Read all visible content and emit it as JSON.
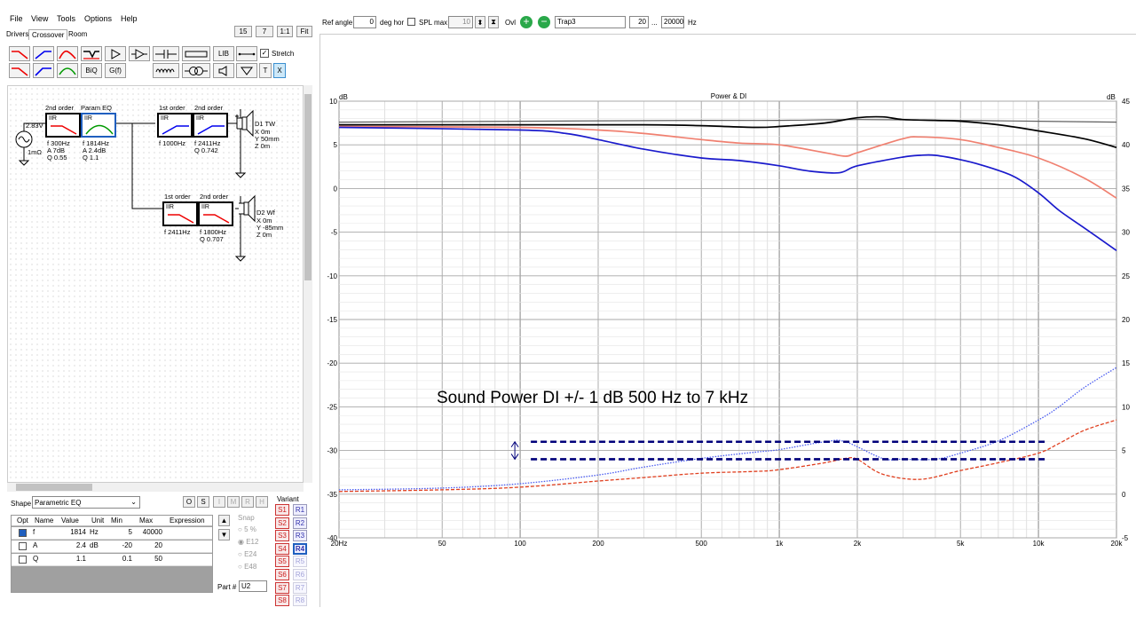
{
  "menu": [
    "File",
    "View",
    "Tools",
    "Options",
    "Help"
  ],
  "tabs": [
    "Drivers",
    "Crossover",
    "Room"
  ],
  "active_tab": "Crossover",
  "zoom_buttons": [
    "15",
    "7",
    "1:1",
    "Fit"
  ],
  "toolbar": {
    "lib_label": "LIB",
    "stretch_label": "Stretch",
    "biq_label": "BiQ",
    "gf_label": "G(f)",
    "t_label": "T",
    "x_label": "X"
  },
  "schematic": {
    "source_voltage": "2.83V",
    "source_impedance": "1mΩ",
    "blocks": [
      {
        "id": "lp1",
        "title": "2nd order",
        "type": "IIR",
        "params": [
          "f  300Hz",
          "A  7dB",
          "Q  0.55"
        ]
      },
      {
        "id": "peq",
        "title": "Param EQ",
        "type": "IIR",
        "params": [
          "f  1814Hz",
          "A  2.4dB",
          "Q  1.1"
        ]
      },
      {
        "id": "hp1",
        "title": "1st order",
        "type": "IIR",
        "params": [
          "f  1000Hz"
        ]
      },
      {
        "id": "hp2",
        "title": "2nd order",
        "type": "IIR",
        "params": [
          "f  2411Hz",
          "Q  0.742"
        ]
      },
      {
        "id": "lp2",
        "title": "1st order",
        "type": "IIR",
        "params": [
          "f  2411Hz"
        ]
      },
      {
        "id": "lp3",
        "title": "2nd order",
        "type": "IIR",
        "params": [
          "f  1800Hz",
          "Q  0.707"
        ]
      }
    ],
    "drivers": [
      {
        "name": "D1 TW",
        "lines": [
          "X 0m",
          "Y 50mm",
          "Z 0m"
        ]
      },
      {
        "name": "D2 Wf",
        "lines": [
          "X 0m",
          "Y -85mm",
          "Z 0m"
        ]
      }
    ]
  },
  "shape": {
    "label": "Shape",
    "value": "Parametric EQ",
    "buttons": [
      "O",
      "S",
      "I",
      "M",
      "R",
      "H"
    ]
  },
  "param_table": {
    "headers": [
      "Opt",
      "Name",
      "Value",
      "Unit",
      "Min",
      "Max",
      "Expression"
    ],
    "rows": [
      {
        "name": "f",
        "value": "1814",
        "unit": "Hz",
        "min": "5",
        "max": "40000",
        "expr": ""
      },
      {
        "name": "A",
        "value": "2.4",
        "unit": "dB",
        "min": "-20",
        "max": "20",
        "expr": ""
      },
      {
        "name": "Q",
        "value": "1.1",
        "unit": "",
        "min": "0.1",
        "max": "50",
        "expr": ""
      }
    ]
  },
  "snap": {
    "label": "Snap",
    "options": [
      "5 %",
      "E12",
      "E24",
      "E48"
    ],
    "selected": "E12"
  },
  "part": {
    "label": "Part #",
    "value": "U2"
  },
  "variant": {
    "label": "Variant",
    "s": [
      "S1",
      "S2",
      "S3",
      "S4",
      "S5",
      "S6",
      "S7",
      "S8"
    ],
    "r": [
      "R1",
      "R2",
      "R3",
      "R4",
      "R5",
      "R6",
      "R7",
      "R8"
    ],
    "active_r": "R4"
  },
  "topbar": {
    "ref_angle_label": "Ref angle",
    "ref_angle_value": "0",
    "deg_hor_label": "deg hor",
    "spl_max_label": "SPL max",
    "spl_max_value": "10",
    "ovl_label": "Ovl",
    "ovl_name": "Trap3",
    "range_from": "20",
    "range_sep": "...",
    "range_to": "20000",
    "range_unit": "Hz"
  },
  "annotation": "Sound Power DI +/- 1 dB  500 Hz to 7 kHz",
  "chart_data": {
    "type": "line",
    "title": "Power & DI",
    "ylabel_left": "dB",
    "ylabel_right": "dB",
    "x_scale": "log",
    "xlim": [
      20,
      20000
    ],
    "ylim_left": [
      -40,
      10
    ],
    "ylim_right": [
      -5,
      45
    ],
    "x_ticks": [
      {
        "v": 20,
        "label": "20Hz"
      },
      {
        "v": 50,
        "label": "50"
      },
      {
        "v": 100,
        "label": "100"
      },
      {
        "v": 200,
        "label": "200"
      },
      {
        "v": 500,
        "label": "500"
      },
      {
        "v": 1000,
        "label": "1k"
      },
      {
        "v": 2000,
        "label": "2k"
      },
      {
        "v": 5000,
        "label": "5k"
      },
      {
        "v": 10000,
        "label": "10k"
      },
      {
        "v": 20000,
        "label": "20k"
      }
    ],
    "y_ticks_left": [
      "10",
      "5",
      "0",
      "-5",
      "-10",
      "-15",
      "-20",
      "-25",
      "-30",
      "-35",
      "-40"
    ],
    "y_ticks_right": [
      "45",
      "40",
      "35",
      "30",
      "25",
      "20",
      "15",
      "10",
      "5",
      "0",
      "-5"
    ],
    "colors": {
      "gray": "#606060",
      "black": "#000000",
      "salmon": "#f08070",
      "blue": "#1a1acc",
      "di_blue": "#4a5cf0",
      "di_red": "#e04020",
      "marker": "#00007a"
    },
    "series": [
      {
        "color": "gray",
        "axis": "left",
        "style": "solid",
        "points": [
          [
            20,
            7.6
          ],
          [
            100,
            7.7
          ],
          [
            500,
            7.8
          ],
          [
            1000,
            7.8
          ],
          [
            2000,
            7.9
          ],
          [
            5000,
            7.8
          ],
          [
            10000,
            7.7
          ],
          [
            20000,
            7.6
          ]
        ]
      },
      {
        "color": "black",
        "axis": "left",
        "style": "solid",
        "points": [
          [
            20,
            7.3
          ],
          [
            100,
            7.3
          ],
          [
            300,
            7.3
          ],
          [
            500,
            7.2
          ],
          [
            800,
            7.0
          ],
          [
            1000,
            7.1
          ],
          [
            1500,
            7.5
          ],
          [
            2000,
            8.1
          ],
          [
            2500,
            8.2
          ],
          [
            3000,
            7.9
          ],
          [
            4000,
            7.8
          ],
          [
            5000,
            7.7
          ],
          [
            7000,
            7.3
          ],
          [
            10000,
            6.6
          ],
          [
            15000,
            5.7
          ],
          [
            20000,
            4.7
          ]
        ]
      },
      {
        "color": "salmon",
        "axis": "left",
        "style": "solid",
        "points": [
          [
            20,
            7.1
          ],
          [
            100,
            7.0
          ],
          [
            200,
            6.7
          ],
          [
            300,
            6.3
          ],
          [
            500,
            5.6
          ],
          [
            700,
            5.2
          ],
          [
            1000,
            5.0
          ],
          [
            1500,
            4.1
          ],
          [
            1800,
            3.7
          ],
          [
            2000,
            4.1
          ],
          [
            3000,
            5.7
          ],
          [
            3500,
            5.9
          ],
          [
            5000,
            5.6
          ],
          [
            7000,
            4.7
          ],
          [
            10000,
            3.5
          ],
          [
            15000,
            1.2
          ],
          [
            20000,
            -1.1
          ]
        ]
      },
      {
        "color": "blue",
        "axis": "left",
        "style": "solid",
        "points": [
          [
            20,
            7.0
          ],
          [
            100,
            6.7
          ],
          [
            150,
            6.3
          ],
          [
            200,
            5.6
          ],
          [
            300,
            4.5
          ],
          [
            500,
            3.5
          ],
          [
            700,
            3.2
          ],
          [
            1000,
            2.6
          ],
          [
            1300,
            2.0
          ],
          [
            1700,
            1.8
          ],
          [
            2000,
            2.6
          ],
          [
            3000,
            3.6
          ],
          [
            3500,
            3.8
          ],
          [
            4000,
            3.8
          ],
          [
            5000,
            3.3
          ],
          [
            6000,
            2.7
          ],
          [
            8000,
            1.4
          ],
          [
            10000,
            -0.5
          ],
          [
            12000,
            -2.5
          ],
          [
            15000,
            -4.5
          ],
          [
            20000,
            -7.1
          ]
        ]
      },
      {
        "color": "di_blue",
        "axis": "right",
        "style": "dotted",
        "points": [
          [
            20,
            0.5
          ],
          [
            50,
            0.7
          ],
          [
            100,
            1.2
          ],
          [
            200,
            2.2
          ],
          [
            300,
            3.1
          ],
          [
            500,
            4.1
          ],
          [
            800,
            4.8
          ],
          [
            1000,
            5.1
          ],
          [
            1500,
            6.0
          ],
          [
            1800,
            6.0
          ],
          [
            2500,
            4.1
          ],
          [
            3000,
            4.0
          ],
          [
            4000,
            4.0
          ],
          [
            5000,
            4.7
          ],
          [
            7000,
            6.1
          ],
          [
            10000,
            8.5
          ],
          [
            12000,
            10.0
          ],
          [
            15000,
            12.2
          ],
          [
            20000,
            14.5
          ]
        ]
      },
      {
        "color": "di_red",
        "axis": "right",
        "style": "dashed",
        "points": [
          [
            20,
            0.3
          ],
          [
            50,
            0.5
          ],
          [
            100,
            0.8
          ],
          [
            200,
            1.5
          ],
          [
            300,
            1.9
          ],
          [
            500,
            2.4
          ],
          [
            800,
            2.6
          ],
          [
            1000,
            2.8
          ],
          [
            1500,
            3.6
          ],
          [
            1800,
            4.1
          ],
          [
            2000,
            4.0
          ],
          [
            2500,
            2.3
          ],
          [
            3500,
            1.7
          ],
          [
            5000,
            2.7
          ],
          [
            7000,
            3.6
          ],
          [
            10000,
            4.7
          ],
          [
            12000,
            5.8
          ],
          [
            15000,
            7.3
          ],
          [
            20000,
            8.5
          ]
        ]
      }
    ],
    "di_band": {
      "upper_db": 6,
      "lower_db": 4,
      "from_hz": 100,
      "to_hz": 10700
    }
  }
}
